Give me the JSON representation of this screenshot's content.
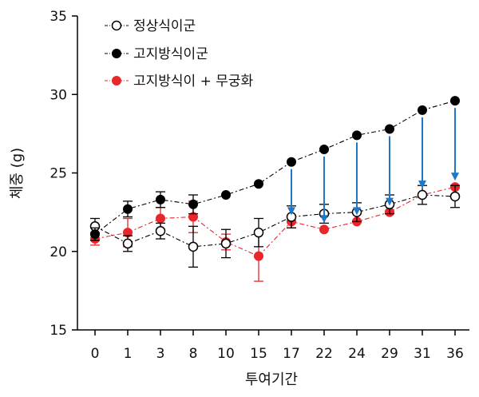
{
  "chart_data": {
    "type": "line",
    "xlabel": "투여기간",
    "ylabel": "체중 (g)",
    "categories": [
      "0",
      "1",
      "3",
      "8",
      "10",
      "15",
      "17",
      "22",
      "24",
      "29",
      "31",
      "36"
    ],
    "ylim": [
      15,
      35
    ],
    "yticks": [
      15,
      20,
      25,
      30,
      35
    ],
    "legend_position": "top-left",
    "series": [
      {
        "name": "정상식이군",
        "marker": "open-circle",
        "color": "#000000",
        "values": [
          21.6,
          20.5,
          21.3,
          20.3,
          20.5,
          21.2,
          22.2,
          22.4,
          22.5,
          23.0,
          23.6,
          23.5
        ],
        "error": [
          0.5,
          0.5,
          0.5,
          1.3,
          0.9,
          0.9,
          0.7,
          0.6,
          0.6,
          0.6,
          0.6,
          0.7
        ]
      },
      {
        "name": "고지방식이군",
        "marker": "filled-circle",
        "color": "#000000",
        "values": [
          21.1,
          22.7,
          23.3,
          23.0,
          23.6,
          24.3,
          25.7,
          26.5,
          27.4,
          27.8,
          29.0,
          29.6
        ],
        "error": [
          0.4,
          0.5,
          0.5,
          0.6,
          0.0,
          0.0,
          0.0,
          0.0,
          0.0,
          0.0,
          0.0,
          0.0
        ]
      },
      {
        "name": "고지방식이 + 무궁화",
        "marker": "filled-circle",
        "color": "#e8262b",
        "values": [
          20.8,
          21.2,
          22.1,
          22.2,
          20.6,
          19.7,
          21.9,
          21.4,
          21.9,
          22.5,
          23.6,
          24.1
        ],
        "error": [
          0.4,
          0.9,
          0.7,
          1.0,
          0.5,
          1.6,
          0.4,
          0.0,
          0.0,
          0.0,
          0.0,
          0.0
        ]
      }
    ],
    "annotations": {
      "arrow_color": "#1f77c8",
      "arrows_at_categories": [
        "17",
        "22",
        "24",
        "29",
        "31",
        "36"
      ],
      "meaning": "arrows point from 고지방식이군 values down toward 고지방식이 + 무궁화 values"
    }
  }
}
